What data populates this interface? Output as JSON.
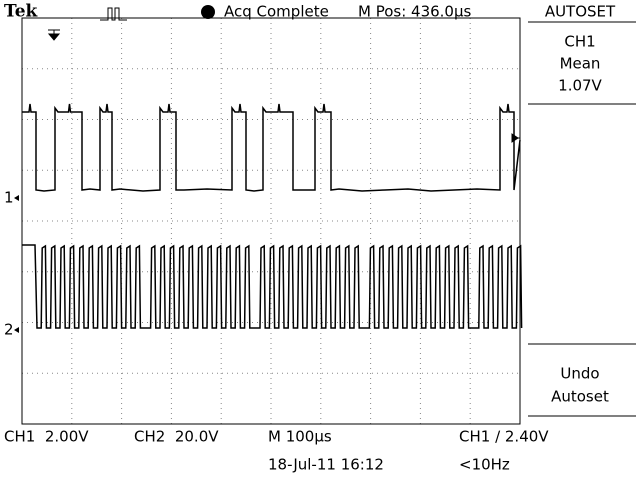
{
  "header": {
    "brand": "Tek",
    "status": "Acq Complete",
    "position": "M Pos: 436.0µs"
  },
  "side_panel": {
    "title": "AUTOSET",
    "measure_channel": "CH1",
    "measure_type": "Mean",
    "measure_value": "1.07V",
    "undo_line1": "Undo",
    "undo_line2": "Autoset"
  },
  "channel_markers": [
    "1",
    "2"
  ],
  "footer": {
    "ch1_scale": "CH1  2.00V",
    "ch2_scale": "CH2  20.0V",
    "timebase": "M 100µs",
    "trigger": "CH1 ∕ 2.40V",
    "datetime": "18-Jul-11 16:12",
    "frequency": "<10Hz"
  }
}
